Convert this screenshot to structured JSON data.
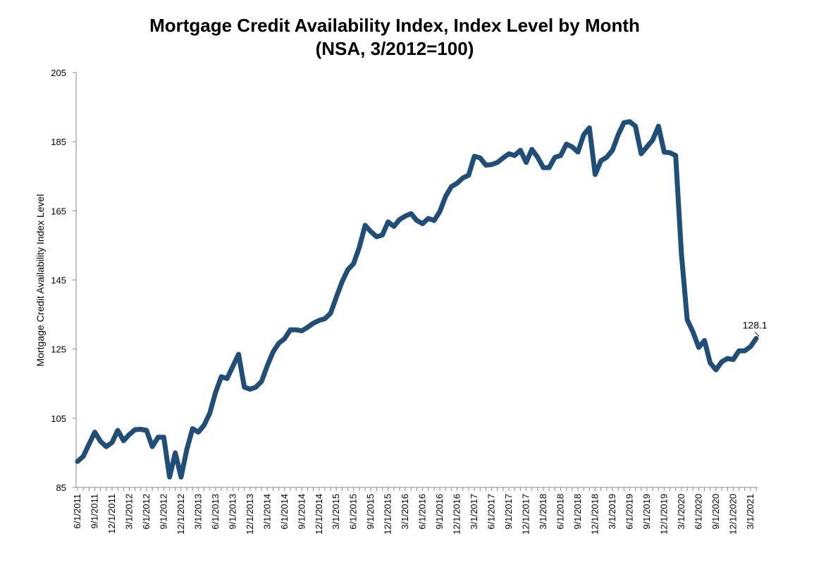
{
  "chart_data": {
    "type": "line",
    "title": "Mortgage Credit Availability Index, Index Level by Month",
    "subtitle": "(NSA, 3/2012=100)",
    "xlabel": "",
    "ylabel": "Mortgage Credit Availability Index Level",
    "ylim": [
      85,
      205
    ],
    "yticks": [
      85,
      105,
      125,
      145,
      165,
      185,
      205
    ],
    "grid": false,
    "line_color": "#1f4e79",
    "x_tick_labels": [
      "6/1/2011",
      "9/1/2011",
      "12/1/2011",
      "3/1/2012",
      "6/1/2012",
      "9/1/2012",
      "12/1/2012",
      "3/1/2013",
      "6/1/2013",
      "9/1/2013",
      "12/1/2013",
      "3/1/2014",
      "6/1/2014",
      "9/1/2014",
      "12/1/2014",
      "3/1/2015",
      "6/1/2015",
      "9/1/2015",
      "12/1/2015",
      "3/1/2016",
      "6/1/2016",
      "9/1/2016",
      "12/1/2016",
      "3/1/2017",
      "6/1/2017",
      "9/1/2017",
      "12/1/2017",
      "3/1/2018",
      "6/1/2018",
      "9/1/2018",
      "12/1/2018",
      "3/1/2019",
      "6/1/2019",
      "9/1/2019",
      "12/1/2019",
      "3/1/2020",
      "6/1/2020",
      "9/1/2020",
      "12/1/2020",
      "3/1/2021"
    ],
    "series": [
      {
        "start_month": "6/1/2011",
        "values": [
          92.5,
          94.0,
          97.5,
          101.0,
          98.3,
          96.8,
          98.0,
          101.5,
          98.5,
          100.3,
          101.7,
          101.8,
          101.5,
          96.8,
          99.5,
          99.5,
          88.0,
          95.0,
          88.0,
          96.0,
          102.0,
          101.0,
          103.0,
          106.5,
          112.5,
          117.0,
          116.5,
          120.0,
          123.5,
          114.0,
          113.4,
          114.0,
          115.7,
          120.2,
          124.2,
          126.7,
          128.0,
          130.6,
          130.6,
          130.3,
          131.3,
          132.5,
          133.3,
          133.8,
          135.4,
          140.0,
          144.5,
          148.0,
          149.7,
          154.5,
          160.8,
          159.0,
          157.5,
          158.0,
          161.8,
          160.5,
          162.5,
          163.5,
          164.2,
          162.2,
          161.3,
          162.8,
          162.2,
          164.8,
          169.2,
          172.0,
          173.0,
          174.5,
          175.3,
          180.8,
          180.3,
          178.2,
          178.4,
          179.0,
          180.3,
          181.5,
          181.0,
          182.5,
          179.0,
          182.8,
          180.5,
          177.5,
          177.5,
          180.5,
          181.0,
          184.3,
          183.5,
          182.0,
          187.0,
          189.0,
          175.5,
          179.5,
          180.5,
          182.5,
          187.0,
          190.5,
          190.8,
          189.5,
          181.5,
          183.5,
          185.5,
          189.5,
          182.0,
          181.8,
          181.0,
          152.5,
          133.5,
          130.0,
          125.5,
          127.5,
          121.0,
          119.0,
          121.3,
          122.3,
          122.0,
          124.5,
          124.5,
          125.7,
          128.1
        ]
      }
    ],
    "annotations": [
      {
        "text": "128.1",
        "x": "5/1/2021",
        "y": 128.1
      }
    ]
  }
}
